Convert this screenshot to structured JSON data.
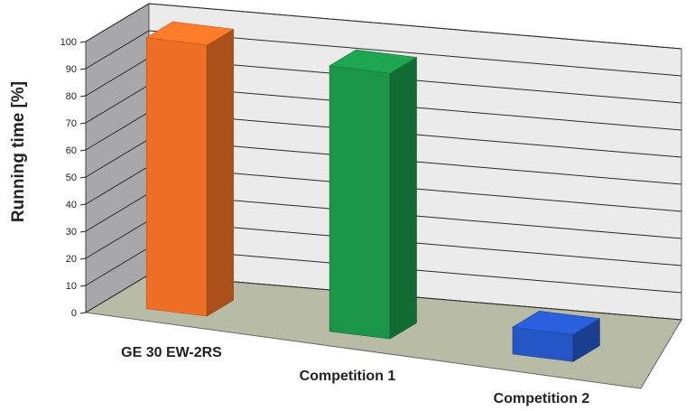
{
  "chart_data": {
    "type": "bar",
    "title": "",
    "xlabel": "",
    "ylabel": "Running time [%]",
    "ylim": [
      0,
      100
    ],
    "yticks": [
      0,
      10,
      20,
      30,
      40,
      50,
      60,
      70,
      80,
      90,
      100
    ],
    "categories": [
      "GE 30 EW-2RS",
      "Competition 1",
      "Competition 2"
    ],
    "values": [
      100,
      98,
      10
    ],
    "grid": true,
    "legend": "none",
    "three_d": true,
    "colors": [
      "#ee6f26",
      "#1b9548",
      "#2456c6"
    ]
  }
}
